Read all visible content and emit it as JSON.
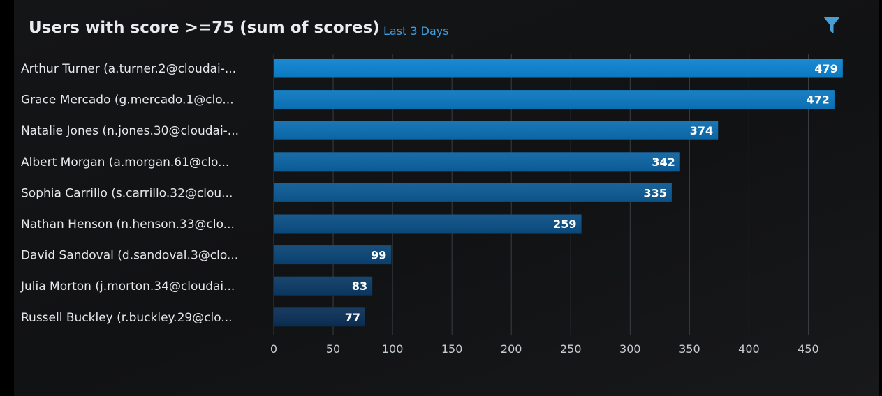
{
  "header": {
    "title": "Users with score >=75 (sum of scores)",
    "subtitle": "Last 3 Days",
    "filter_icon": "filter-funnel-icon"
  },
  "colors": {
    "background": "#121315",
    "accent": "#3f9fe0",
    "bar_top": "#0b82cf",
    "bar_bottom": "#0a2f57",
    "grid": "#3a3d42"
  },
  "chart_data": {
    "type": "bar",
    "orientation": "horizontal",
    "title": "Users with score >=75 (sum of scores)",
    "subtitle": "Last 3 Days",
    "categories": [
      "Arthur Turner (a.turner.2@cloudai-...",
      "Grace Mercado (g.mercado.1@clo...",
      "Natalie Jones (n.jones.30@cloudai-...",
      "Albert Morgan (a.morgan.61@clo...",
      "Sophia Carrillo (s.carrillo.32@clou...",
      "Nathan Henson (n.henson.33@clo...",
      "David Sandoval (d.sandoval.3@clo...",
      "Julia Morton (j.morton.34@cloudai...",
      "Russell Buckley (r.buckley.29@clo..."
    ],
    "values": [
      479,
      472,
      374,
      342,
      335,
      259,
      99,
      83,
      77
    ],
    "xlim": [
      0,
      475
    ],
    "xticks": [
      0,
      50,
      100,
      150,
      200,
      250,
      300,
      350,
      400,
      450
    ],
    "grid": true,
    "legend": "none",
    "data_labels": true
  }
}
